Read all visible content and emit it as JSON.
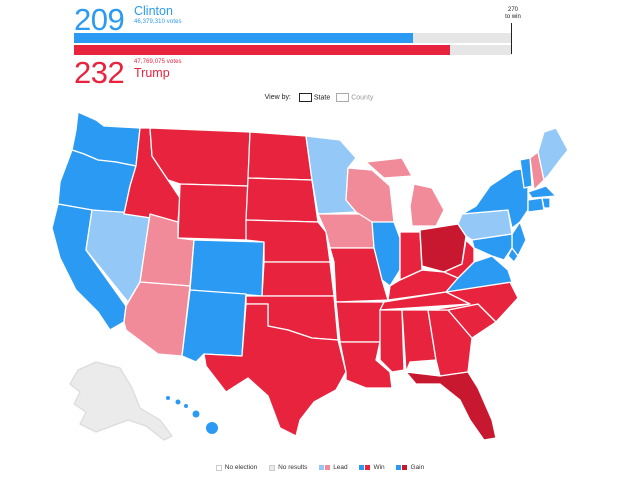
{
  "header": {
    "clinton": {
      "electoral": "209",
      "name": "Clinton",
      "votes": "46,379,310 votes",
      "share": 0.7741
    },
    "trump": {
      "electoral": "232",
      "name": "Trump",
      "votes": "47,769,075 votes",
      "share": 0.8593
    },
    "win_label": "270\nto win"
  },
  "view_by": {
    "label": "View by:",
    "state": "State",
    "county": "County"
  },
  "colors": {
    "dem_win": "#2b9af3",
    "dem_lead": "#93c8f7",
    "rep_win": "#e8233e",
    "rep_lead": "#f28b99",
    "rep_gain": "#c8182f",
    "no_results": "#ebebeb",
    "no_election": "#ffffff"
  },
  "legend": {
    "no_election": "No election",
    "no_results": "No results",
    "lead": "Lead",
    "win": "Win",
    "gain": "Gain"
  }
}
